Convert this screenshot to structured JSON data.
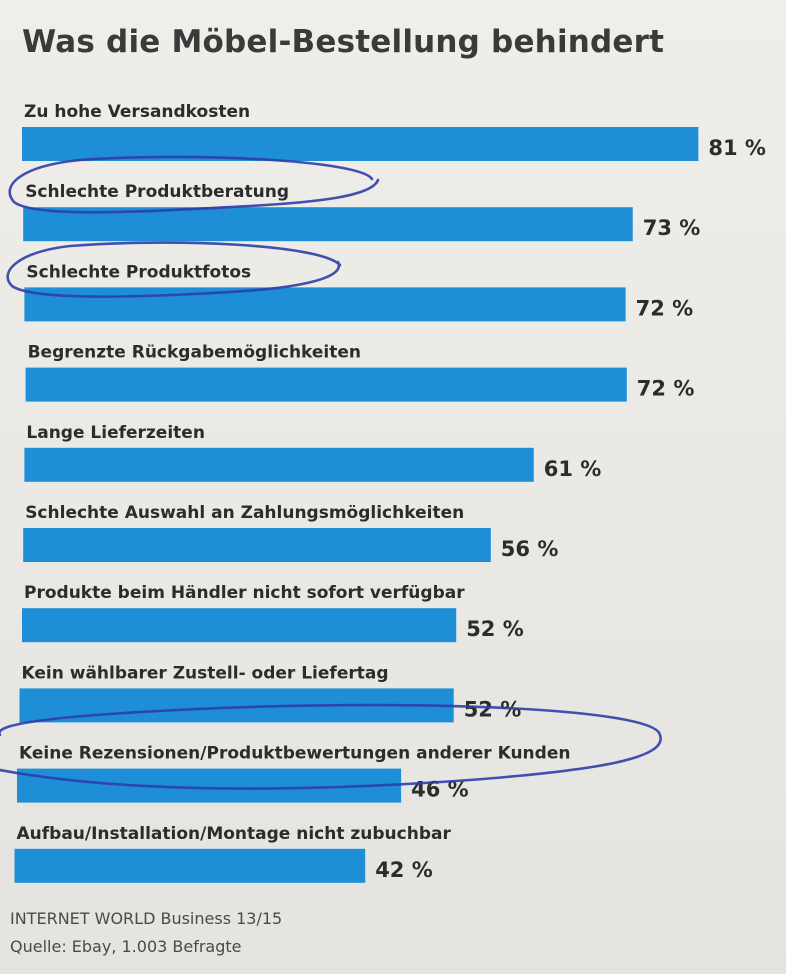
{
  "chart_data": {
    "type": "bar",
    "orientation": "horizontal",
    "title": "Was die Möbel-Bestellung behindert",
    "categories": [
      "Zu hohe Versandkosten",
      "Schlechte Produktberatung",
      "Schlechte Produktfotos",
      "Begrenzte Rückgabemöglichkeiten",
      "Lange Lieferzeiten",
      "Schlechte Auswahl an Zahlungsmöglichkeiten",
      "Produkte beim Händler nicht sofort verfügbar",
      "Kein wählbarer Zustell- oder Liefertag",
      "Keine Rezensionen/Produktbewertungen anderer Kunden",
      "Aufbau/Installation/Montage nicht zubuchbar"
    ],
    "values": [
      81,
      73,
      72,
      72,
      61,
      56,
      52,
      52,
      46,
      42
    ],
    "value_labels": [
      "81 %",
      "73 %",
      "72 %",
      "72 %",
      "61 %",
      "56 %",
      "52 %",
      "52 %",
      "46 %",
      "42 %"
    ],
    "unit": "%",
    "xlim": [
      0,
      100
    ],
    "bar_color": "#1e8fd6",
    "grid": false,
    "legend": "none",
    "annotations": {
      "color": "#2f3ea8",
      "circled_categories": [
        "Schlechte Produktberatung",
        "Schlechte Produktfotos",
        "Keine Rezensionen/Produktbewertungen anderer Kunden"
      ]
    }
  },
  "source": {
    "line1": "INTERNET WORLD Business 13/15",
    "line2": "Quelle: Ebay, 1.003 Befragte"
  }
}
